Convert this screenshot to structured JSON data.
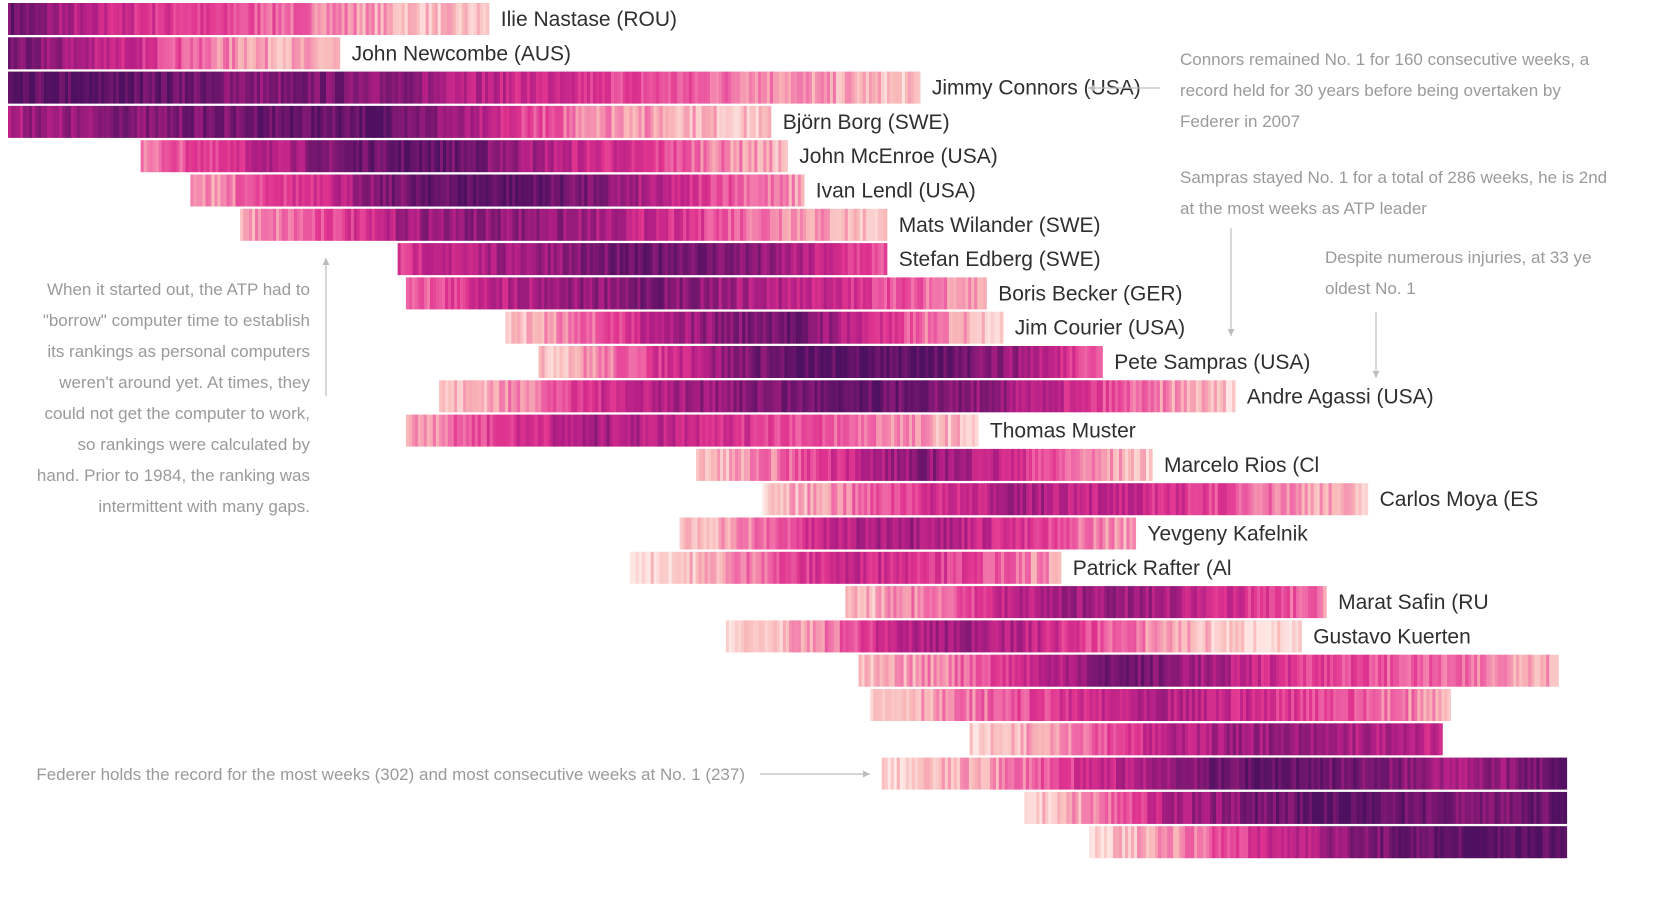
{
  "chart_data": {
    "type": "heatmap",
    "title": "",
    "xlabel": "",
    "ylabel": "",
    "color_scale": [
      "#fde7e5",
      "#f9b8b8",
      "#f06aa8",
      "#e0338f",
      "#b41f86",
      "#7d1872",
      "#4e1060"
    ],
    "players": [
      {
        "name": "Ilie Nastase (ROU)",
        "x_start": 0.0,
        "x_end": 0.29,
        "value_profile": [
          0.9,
          0.6,
          0.5,
          0.4,
          0.3,
          0.15,
          0.1
        ]
      },
      {
        "name": "John Newcombe (AUS)",
        "x_start": 0.0,
        "x_end": 0.2,
        "value_profile": [
          0.85,
          0.7,
          0.55,
          0.3,
          0.2,
          0.15
        ]
      },
      {
        "name": "Jimmy Connors (USA)",
        "x_start": 0.0,
        "x_end": 0.55,
        "value_profile": [
          0.9,
          0.95,
          0.9,
          0.8,
          0.85,
          0.75,
          0.6,
          0.5,
          0.4,
          0.3,
          0.2,
          0.1
        ]
      },
      {
        "name": "Björn Borg (SWE)",
        "x_start": 0.0,
        "x_end": 0.46,
        "value_profile": [
          0.7,
          0.8,
          0.85,
          0.9,
          0.95,
          0.6,
          0.3,
          0.2,
          0.1
        ]
      },
      {
        "name": "John McEnroe (USA)",
        "x_start": 0.08,
        "x_end": 0.47,
        "value_profile": [
          0.3,
          0.5,
          0.7,
          0.9,
          0.95,
          0.8,
          0.6,
          0.5,
          0.3,
          0.15
        ]
      },
      {
        "name": "Ivan Lendl (USA)",
        "x_start": 0.11,
        "x_end": 0.48,
        "value_profile": [
          0.2,
          0.4,
          0.6,
          0.85,
          0.95,
          0.95,
          0.8,
          0.6,
          0.4,
          0.2
        ]
      },
      {
        "name": "Mats Wilander (SWE)",
        "x_start": 0.14,
        "x_end": 0.53,
        "value_profile": [
          0.2,
          0.4,
          0.7,
          0.8,
          0.75,
          0.6,
          0.4,
          0.25,
          0.1
        ]
      },
      {
        "name": "Stefan Edberg (SWE)",
        "x_start": 0.235,
        "x_end": 0.53,
        "value_profile": [
          0.5,
          0.65,
          0.75,
          0.85,
          0.9,
          0.8,
          0.6,
          0.4
        ]
      },
      {
        "name": "Boris Becker (GER)",
        "x_start": 0.24,
        "x_end": 0.59,
        "value_profile": [
          0.3,
          0.6,
          0.75,
          0.85,
          0.7,
          0.6,
          0.4,
          0.2
        ]
      },
      {
        "name": "Jim Courier (USA)",
        "x_start": 0.3,
        "x_end": 0.6,
        "value_profile": [
          0.1,
          0.3,
          0.6,
          0.8,
          0.9,
          0.6,
          0.3,
          0.1
        ]
      },
      {
        "name": "Pete Sampras (USA)",
        "x_start": 0.32,
        "x_end": 0.66,
        "value_profile": [
          0.1,
          0.3,
          0.6,
          0.85,
          0.95,
          0.95,
          0.9,
          0.7,
          0.4
        ]
      },
      {
        "name": "Andre Agassi (USA)",
        "x_start": 0.26,
        "x_end": 0.74,
        "value_profile": [
          0.1,
          0.3,
          0.6,
          0.75,
          0.85,
          0.9,
          0.8,
          0.6,
          0.3,
          0.1
        ]
      },
      {
        "name": "Thomas Muster",
        "x_start": 0.24,
        "x_end": 0.585,
        "value_profile": [
          0.2,
          0.5,
          0.7,
          0.6,
          0.45,
          0.3,
          0.1
        ]
      },
      {
        "name": "Marcelo Rios (Cl",
        "x_start": 0.415,
        "x_end": 0.69,
        "value_profile": [
          0.1,
          0.3,
          0.6,
          0.8,
          0.6,
          0.3,
          0.1
        ]
      },
      {
        "name": "Carlos Moya (ES",
        "x_start": 0.455,
        "x_end": 0.82,
        "value_profile": [
          0.1,
          0.3,
          0.55,
          0.7,
          0.6,
          0.5,
          0.3,
          0.1
        ]
      },
      {
        "name": "Yevgeny Kafelnik",
        "x_start": 0.405,
        "x_end": 0.68,
        "value_profile": [
          0.1,
          0.3,
          0.6,
          0.75,
          0.6,
          0.4,
          0.2
        ]
      },
      {
        "name": "Patrick Rafter (Al",
        "x_start": 0.375,
        "x_end": 0.635,
        "value_profile": [
          0.05,
          0.15,
          0.4,
          0.6,
          0.55,
          0.4,
          0.2
        ]
      },
      {
        "name": "Marat Safin (RU",
        "x_start": 0.505,
        "x_end": 0.795,
        "value_profile": [
          0.1,
          0.3,
          0.6,
          0.75,
          0.7,
          0.5,
          0.3
        ]
      },
      {
        "name": "Gustavo Kuerten",
        "x_start": 0.433,
        "x_end": 0.78,
        "value_profile": [
          0.05,
          0.2,
          0.6,
          0.75,
          0.55,
          0.3,
          0.1,
          0.05
        ]
      },
      {
        "name": "",
        "x_start": 0.513,
        "x_end": 0.935,
        "value_profile": [
          0.1,
          0.3,
          0.6,
          0.9,
          0.7,
          0.5,
          0.4,
          0.3,
          0.2
        ]
      },
      {
        "name": "",
        "x_start": 0.52,
        "x_end": 0.87,
        "value_profile": [
          0.1,
          0.3,
          0.5,
          0.65,
          0.55,
          0.4,
          0.2
        ]
      },
      {
        "name": "",
        "x_start": 0.58,
        "x_end": 0.865,
        "value_profile": [
          0.05,
          0.3,
          0.6,
          0.75,
          0.7,
          0.6
        ]
      },
      {
        "name": "",
        "x_start": 0.527,
        "x_end": 0.94,
        "value_profile": [
          0.05,
          0.2,
          0.5,
          0.8,
          0.95,
          0.85,
          0.7,
          0.9
        ]
      },
      {
        "name": "",
        "x_start": 0.613,
        "x_end": 0.94,
        "value_profile": [
          0.05,
          0.3,
          0.7,
          0.85,
          0.95,
          0.9,
          0.8,
          0.95
        ]
      },
      {
        "name": "",
        "x_start": 0.652,
        "x_end": 0.94,
        "value_profile": [
          0.05,
          0.3,
          0.6,
          0.85,
          0.95,
          0.95
        ]
      }
    ],
    "annotations": [
      {
        "id": "connors",
        "lines": [
          "Connors remained No. 1 for 160 consecutive weeks, a",
          "record held for 30 years before being overtaken by",
          "Federer in 2007"
        ]
      },
      {
        "id": "sampras",
        "lines": [
          "Sampras stayed No. 1 for a total of 286 weeks, he is 2nd",
          "at the most weeks as ATP leader"
        ]
      },
      {
        "id": "agassi",
        "lines": [
          "Despite numerous injuries, at 33 ye",
          "oldest No. 1"
        ]
      },
      {
        "id": "atp",
        "lines": [
          "When it started out, the ATP had to",
          "\"borrow\" computer time to establish",
          "its rankings as personal computers",
          "weren't around yet. At times, they",
          "could not get the computer to work,",
          "so rankings were calculated by",
          "hand. Prior to 1984, the ranking was",
          "intermittent with many gaps."
        ]
      },
      {
        "id": "federer",
        "lines": [
          "Federer holds the record for the most weeks (302) and most consecutive weeks at No. 1 (237)"
        ]
      }
    ]
  }
}
